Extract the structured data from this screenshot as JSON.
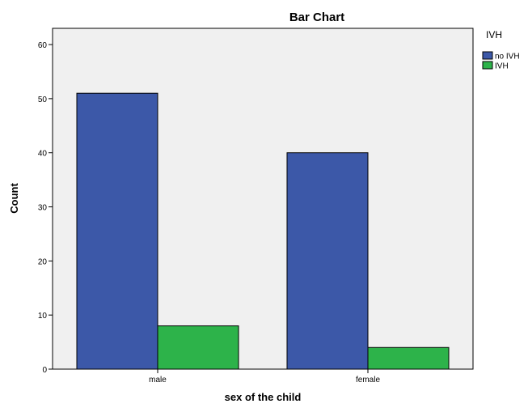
{
  "chart_data": {
    "type": "bar",
    "title": "Bar Chart",
    "xlabel": "sex of the child",
    "ylabel": "Count",
    "categories": [
      "male",
      "female"
    ],
    "series": [
      {
        "name": "no IVH",
        "values": [
          51,
          40
        ],
        "color": "#3c58a8"
      },
      {
        "name": "IVH",
        "values": [
          8,
          4
        ],
        "color": "#2db34a"
      }
    ],
    "ylim": [
      0,
      63
    ],
    "yticks": [
      0,
      10,
      20,
      30,
      40,
      50,
      60
    ],
    "legend": {
      "title": "IVH",
      "placement": "right"
    },
    "plot_background": "#f0f0f0",
    "grid": false
  }
}
